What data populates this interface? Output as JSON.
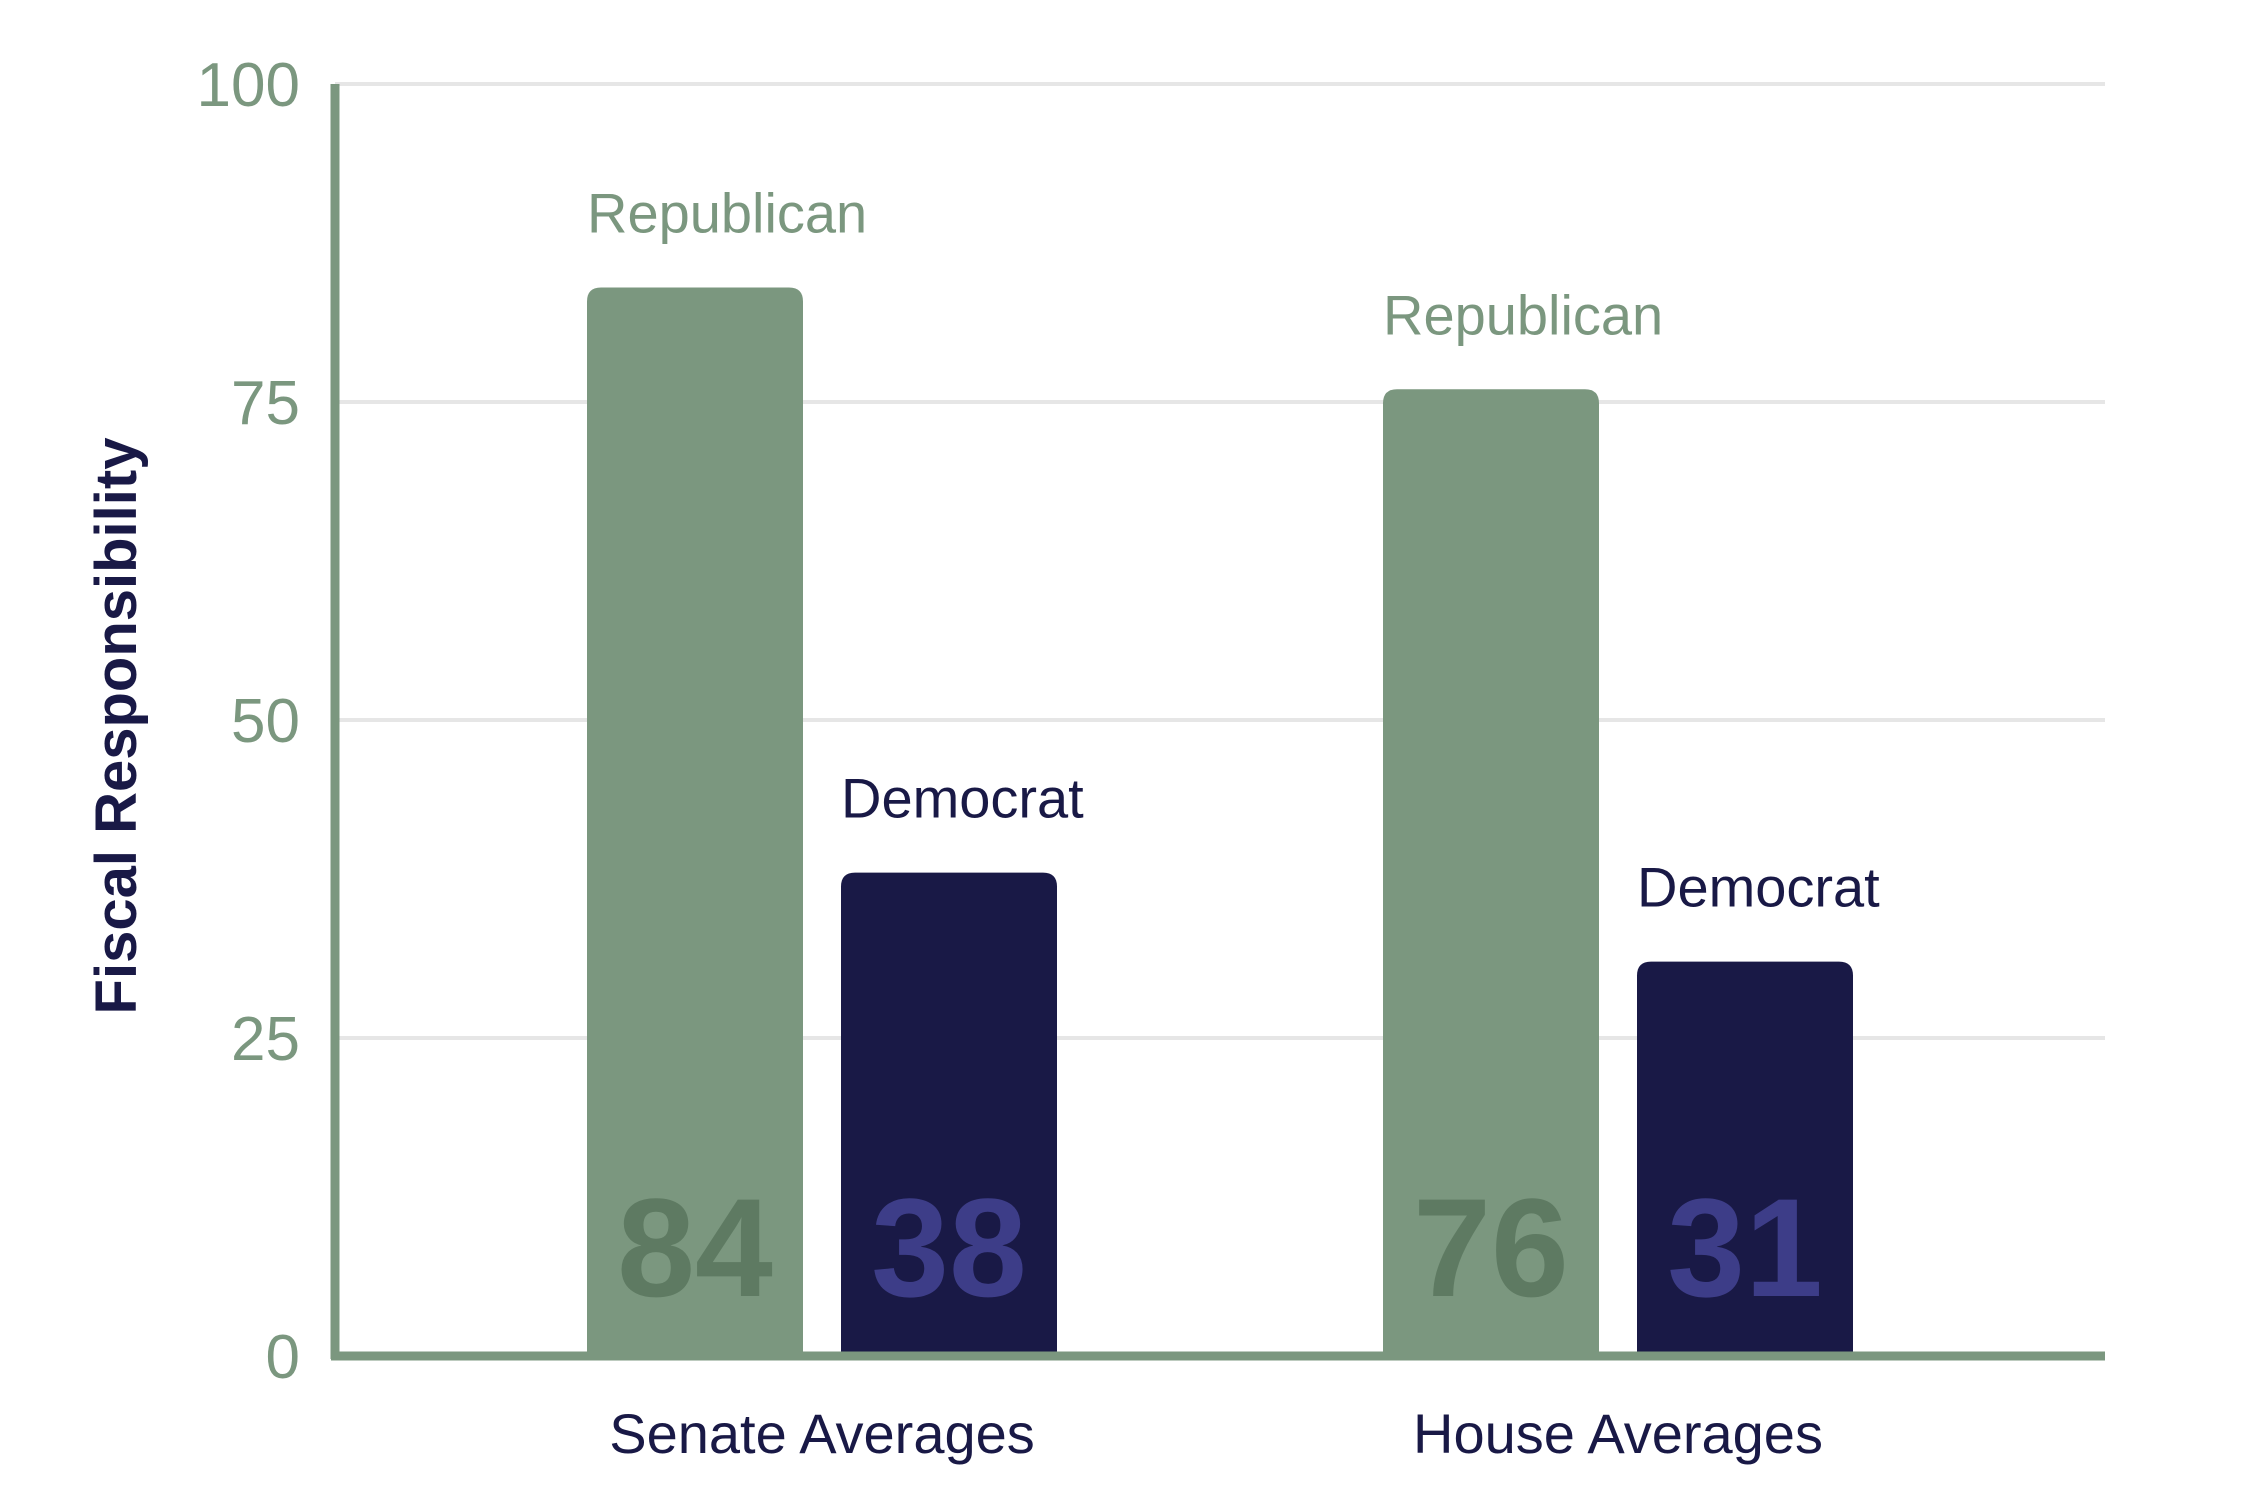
{
  "chart_data": {
    "type": "bar",
    "title": "",
    "xlabel": "",
    "ylabel": "Fiscal Responsibility",
    "ylim": [
      0,
      100
    ],
    "yticks": [
      0,
      25,
      50,
      75,
      100
    ],
    "grid": true,
    "categories": [
      "Senate Averages",
      "House Averages"
    ],
    "series": [
      {
        "name": "Republican",
        "values": [
          84,
          76
        ],
        "color": "#7b977f",
        "value_label_color": "#5e7a62",
        "name_label_color": "#7b977f"
      },
      {
        "name": "Democrat",
        "values": [
          38,
          31
        ],
        "color": "#191946",
        "value_label_color": "#3d3d88",
        "name_label_color": "#191946"
      }
    ],
    "colors": {
      "axis": "#7b977f",
      "grid": "#e6e6e6"
    }
  }
}
